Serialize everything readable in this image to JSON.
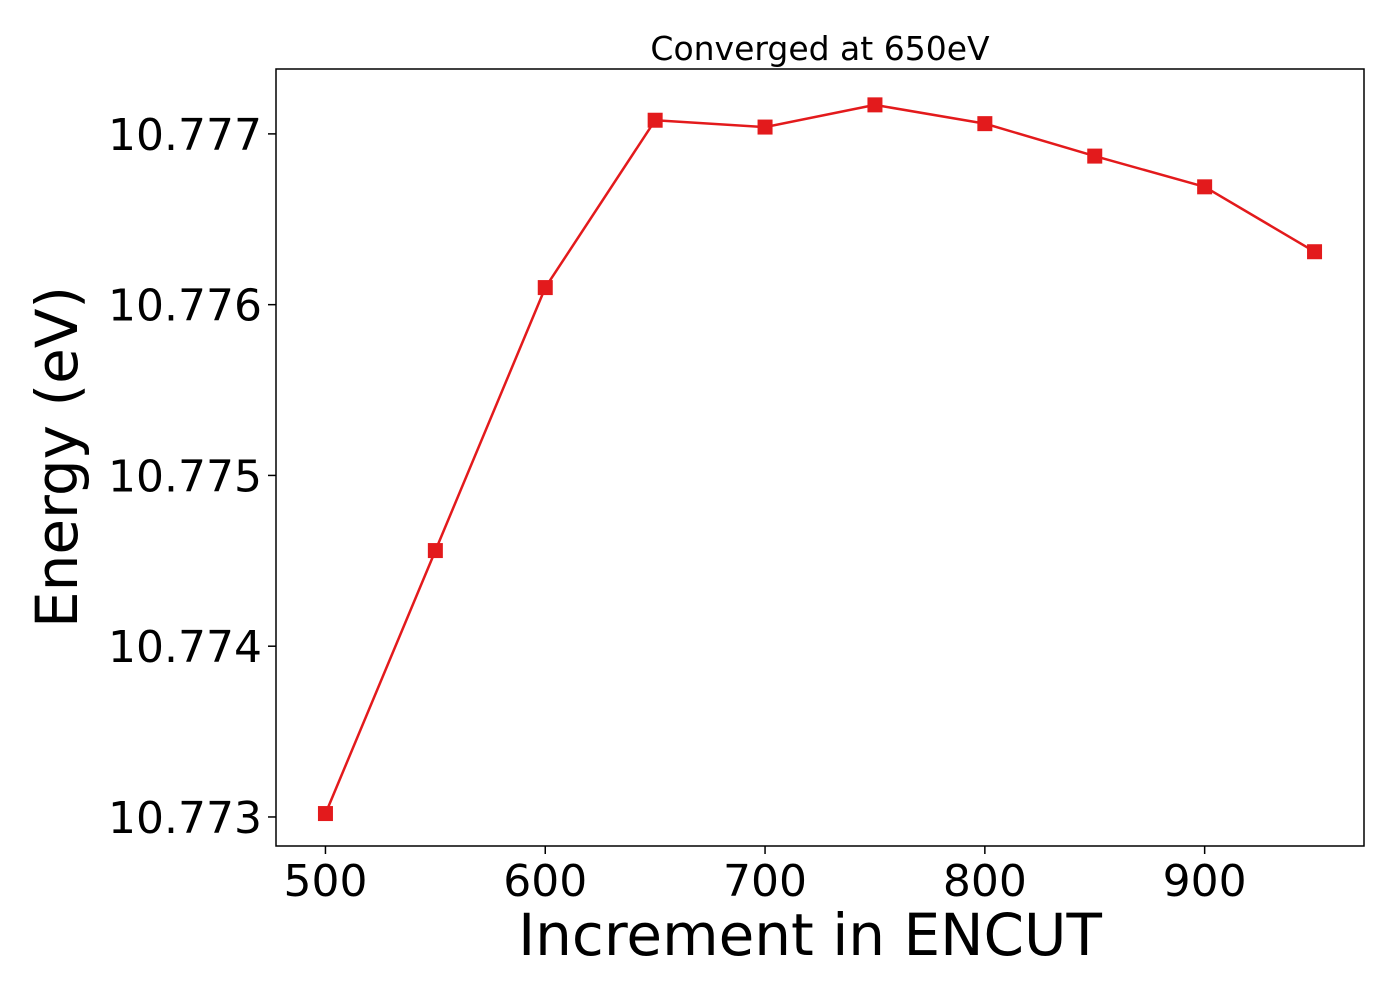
{
  "chart_data": {
    "type": "line",
    "title": "Converged at 650eV",
    "xlabel": "Increment in ENCUT",
    "ylabel": "Energy (eV)",
    "x": [
      500,
      550,
      600,
      650,
      700,
      750,
      800,
      850,
      900,
      950
    ],
    "series": [
      {
        "values": [
          10.77302,
          10.77456,
          10.7761,
          10.77708,
          10.77704,
          10.77717,
          10.77706,
          10.77687,
          10.77669,
          10.77631
        ],
        "color": "#e31a1c",
        "marker": "square"
      }
    ],
    "xticks": [
      500,
      600,
      700,
      800,
      900
    ],
    "xtick_labels": [
      "500",
      "600",
      "700",
      "800",
      "900"
    ],
    "yticks": [
      10.773,
      10.774,
      10.775,
      10.776,
      10.777
    ],
    "ytick_labels": [
      "10.773",
      "10.774",
      "10.775",
      "10.776",
      "10.777"
    ],
    "xlim": [
      477.5,
      972.5
    ],
    "ylim": [
      10.77283,
      10.77738
    ],
    "grid": false,
    "legend": "none"
  }
}
